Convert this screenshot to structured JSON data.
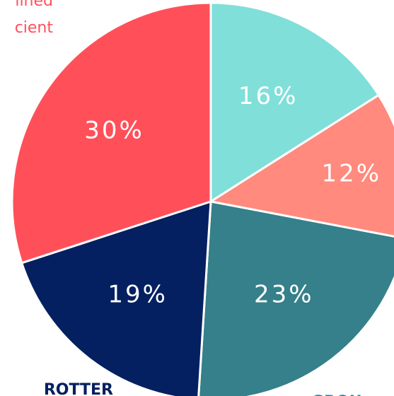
{
  "chart_data": {
    "type": "pie",
    "categories": [
      null,
      null,
      "GROU",
      "ROTTER",
      [
        "lined",
        "cient"
      ]
    ],
    "values": [
      16,
      12,
      23,
      19,
      30
    ],
    "value_labels": [
      "16%",
      "12%",
      "23%",
      "19%",
      "30%"
    ],
    "colors": [
      "#80dfd9",
      "#ff8a7d",
      "#35808a",
      "#052060",
      "#ff505a"
    ]
  }
}
